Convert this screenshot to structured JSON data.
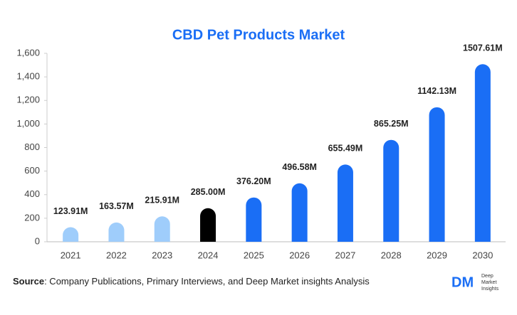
{
  "chart_data": {
    "type": "bar",
    "title": "CBD Pet Products Market",
    "categories": [
      "2021",
      "2022",
      "2023",
      "2024",
      "2025",
      "2026",
      "2027",
      "2028",
      "2029",
      "2030"
    ],
    "values": [
      123.91,
      163.57,
      215.91,
      285.0,
      376.2,
      496.58,
      655.49,
      865.25,
      1142.13,
      1507.61
    ],
    "value_labels": [
      "123.91M",
      "163.57M",
      "215.91M",
      "285.00M",
      "376.20M",
      "496.58M",
      "655.49M",
      "865.25M",
      "1142.13M",
      "1507.61M"
    ],
    "colors": [
      "#9fcdfb",
      "#9fcdfb",
      "#9fcdfb",
      "#000000",
      "#1a6ef5",
      "#1a6ef5",
      "#1a6ef5",
      "#1a6ef5",
      "#1a6ef5",
      "#1a6ef5"
    ],
    "ylim": [
      0,
      1600
    ],
    "yticks": [
      0,
      200,
      400,
      600,
      800,
      {
        "value": 1000,
        "label": "1,000"
      },
      {
        "value": 1200,
        "label": "1,200"
      },
      {
        "value": 1400,
        "label": "1,400"
      },
      {
        "value": 1600,
        "label": "1,600"
      }
    ],
    "grid": false
  },
  "footer": {
    "source_label": "Source",
    "source_text": ": Company Publications, Primary Interviews, and Deep Market insights Analysis",
    "logo": {
      "mark": "DM",
      "line1": "Deep",
      "line2": "Market",
      "line3": "Insights"
    }
  }
}
